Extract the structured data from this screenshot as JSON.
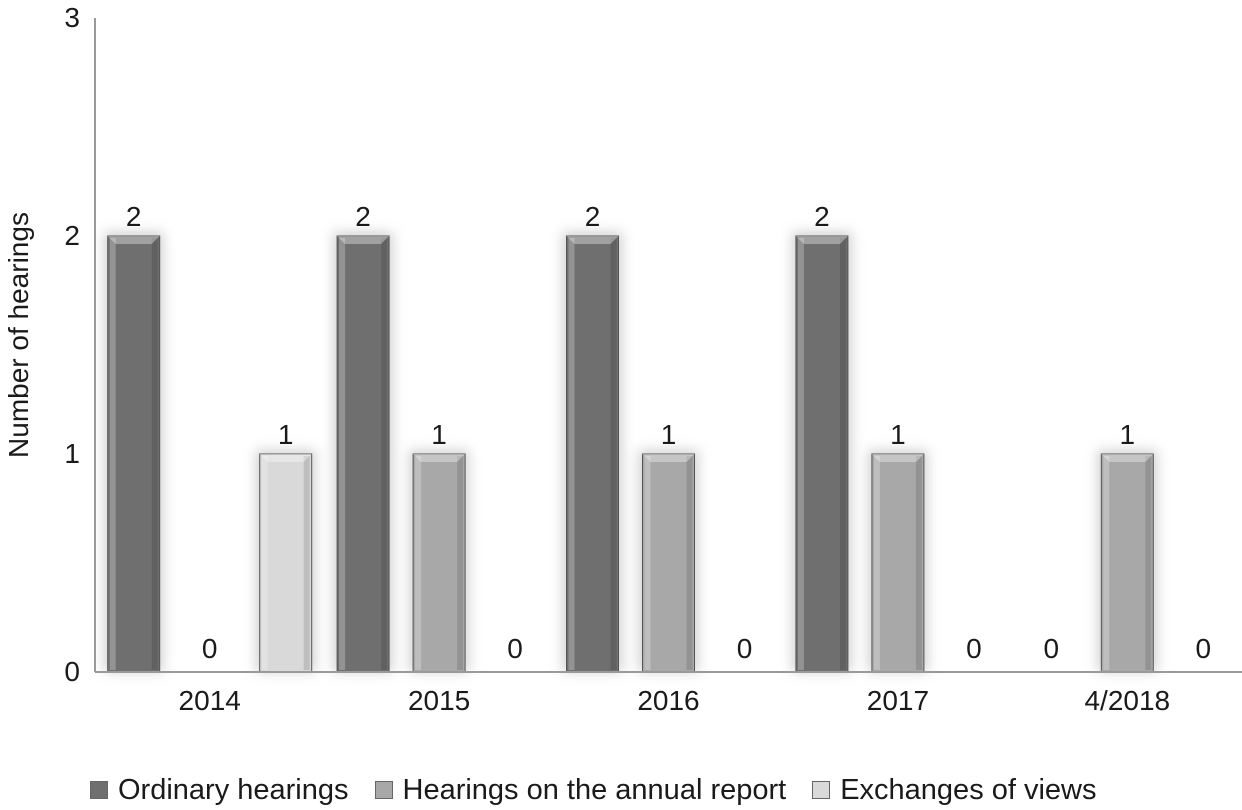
{
  "chart_data": {
    "type": "bar",
    "title": "",
    "xlabel": "",
    "ylabel": "Number of hearings",
    "ylim": [
      0,
      3
    ],
    "yticks": [
      "0",
      "1",
      "2",
      "3"
    ],
    "categories": [
      "2014",
      "2015",
      "2016",
      "2017",
      "4/2018"
    ],
    "series": [
      {
        "name": "Ordinary hearings",
        "values": [
          2,
          2,
          2,
          2,
          0
        ],
        "color": "#6f6f6f"
      },
      {
        "name": "Hearings on the annual report",
        "values": [
          0,
          1,
          1,
          1,
          1
        ],
        "color": "#a8a8a8"
      },
      {
        "name": "Exchanges of views",
        "values": [
          1,
          0,
          0,
          0,
          0
        ],
        "color": "#d9d9d9"
      }
    ],
    "grid": false,
    "legend": "bottom"
  }
}
